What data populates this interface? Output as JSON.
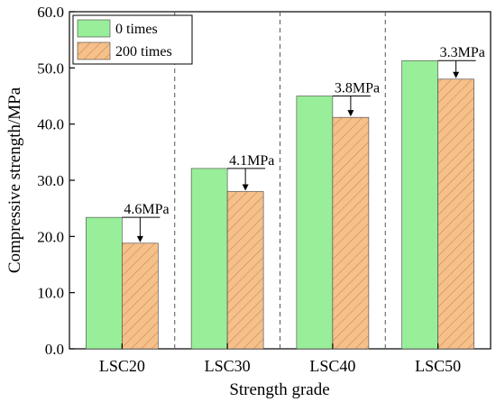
{
  "chart_data": {
    "type": "bar",
    "title": "",
    "xlabel": "Strength grade",
    "ylabel": "Compressive strength/MPa",
    "categories": [
      "LSC20",
      "LSC30",
      "LSC40",
      "LSC50"
    ],
    "ylim": [
      0,
      60
    ],
    "yticks": [
      "0.0",
      "10.0",
      "20.0",
      "30.0",
      "40.0",
      "50.0",
      "60.0"
    ],
    "grid": false,
    "legend_position": "top-left",
    "series": [
      {
        "name": "0 times",
        "values": [
          23.4,
          32.1,
          45.0,
          51.3
        ],
        "color": "#99ee99",
        "pattern": "solid"
      },
      {
        "name": "200 times",
        "values": [
          18.8,
          28.0,
          41.2,
          48.0
        ],
        "color": "#f5c08a",
        "pattern": "diagonal-hatch"
      }
    ],
    "annotations": [
      "4.6MPa",
      "4.1MPa",
      "3.8MPa",
      "3.3MPa"
    ]
  }
}
